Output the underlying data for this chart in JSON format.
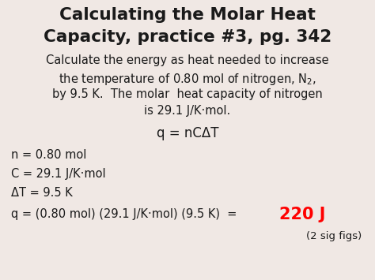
{
  "title_line1": "Calculating the Molar Heat",
  "title_line2": "Capacity, practice #3, pg. 342",
  "bg_color": "#f0e8e4",
  "text_color": "#1a1a1a",
  "highlight_color": "#ff0000",
  "title_fontsize": 15.5,
  "body_fontsize": 10.5,
  "formula_fontsize": 12,
  "highlight_fontsize": 15,
  "small_fontsize": 9.5,
  "figsize": [
    4.74,
    3.55
  ],
  "dpi": 100
}
